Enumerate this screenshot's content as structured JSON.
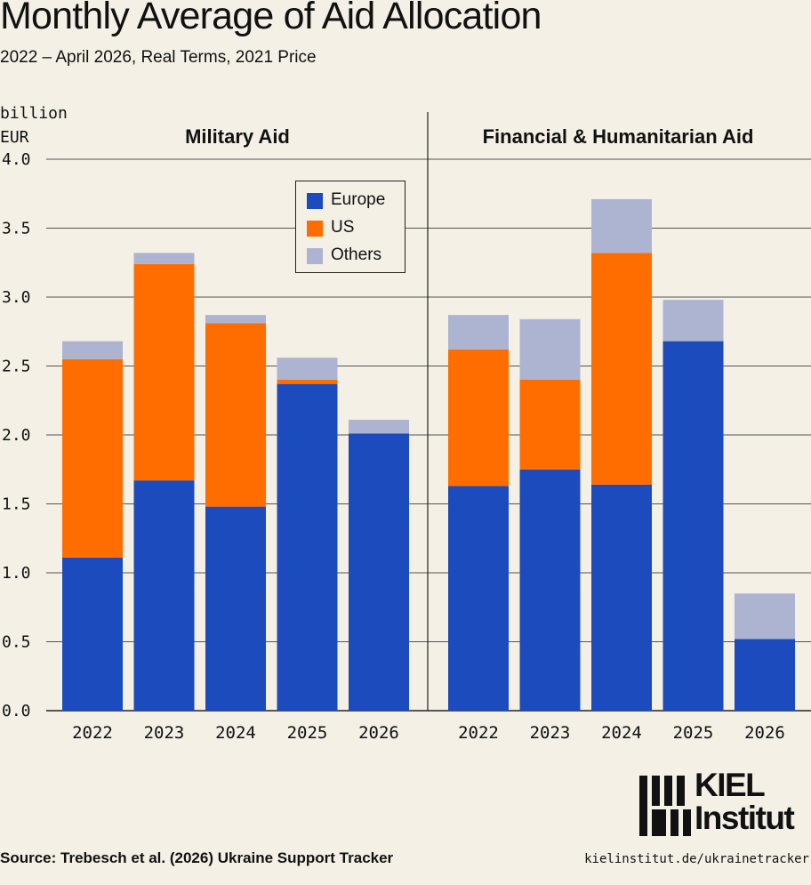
{
  "title": "Monthly Average of Aid Allocation",
  "subtitle": "2022 – April 2026, Real Terms, 2021 Price",
  "source": "Source: Trebesch et al. (2026) Ukraine Support Tracker",
  "url": "kielinstitut.de/ukrainetracker",
  "logo": {
    "line1": "KIEL",
    "line2": "Institut"
  },
  "colors": {
    "europe": "#1c4bbd",
    "us": "#ff6d00",
    "others": "#adb4d2",
    "background": "#f4f0e6"
  },
  "chart_data": {
    "type": "bar",
    "stacked": true,
    "ylabel": "billion\nEUR",
    "ylim": [
      0,
      4.0
    ],
    "yticks": [
      "0.0",
      "0.5",
      "1.0",
      "1.5",
      "2.0",
      "2.5",
      "3.0",
      "3.5",
      "4.0"
    ],
    "grid": true,
    "legend": {
      "placement": "top-center-left",
      "entries": [
        {
          "name": "Europe",
          "color": "#1c4bbd"
        },
        {
          "name": "US",
          "color": "#ff6d00"
        },
        {
          "name": "Others",
          "color": "#adb4d2"
        }
      ]
    },
    "panels": [
      {
        "title": "Military Aid",
        "categories": [
          "2022",
          "2023",
          "2024",
          "2025",
          "2026"
        ],
        "series": [
          {
            "name": "Europe",
            "values": [
              1.11,
              1.67,
              1.48,
              2.37,
              2.01
            ]
          },
          {
            "name": "US",
            "values": [
              1.44,
              1.57,
              1.33,
              0.03,
              0.0
            ]
          },
          {
            "name": "Others",
            "values": [
              0.13,
              0.08,
              0.06,
              0.16,
              0.1
            ]
          }
        ]
      },
      {
        "title": "Financial & Humanitarian Aid",
        "categories": [
          "2022",
          "2023",
          "2024",
          "2025",
          "2026"
        ],
        "series": [
          {
            "name": "Europe",
            "values": [
              1.63,
              1.75,
              1.64,
              2.68,
              0.52
            ]
          },
          {
            "name": "US",
            "values": [
              0.99,
              0.65,
              1.68,
              0.0,
              0.0
            ]
          },
          {
            "name": "Others",
            "values": [
              0.25,
              0.44,
              0.39,
              0.3,
              0.33
            ]
          }
        ]
      }
    ]
  }
}
